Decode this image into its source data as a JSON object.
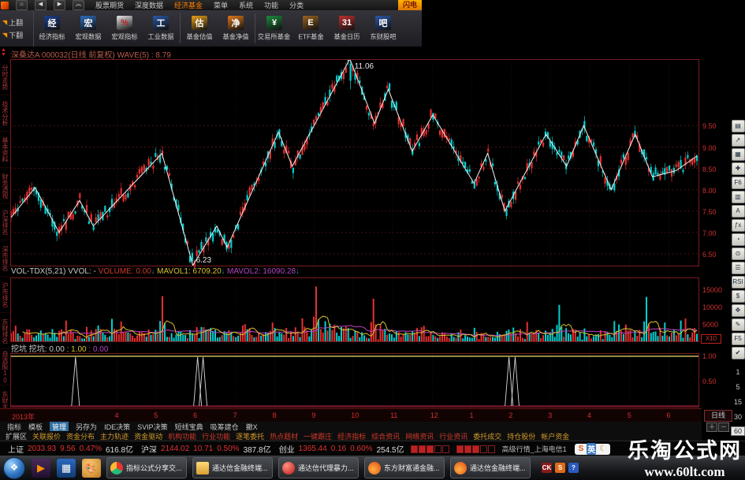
{
  "menu_bar": {
    "nav_buttons": [
      "⌂",
      "◀",
      "▶",
      "︽"
    ],
    "items": [
      {
        "label": "股票期货",
        "hot": false
      },
      {
        "label": "深度数据",
        "hot": false
      },
      {
        "label": "经济基金",
        "hot": true
      },
      {
        "label": "菜单",
        "hot": false
      },
      {
        "label": "系统",
        "hot": false
      },
      {
        "label": "功能",
        "hot": false
      },
      {
        "label": "分类",
        "hot": false
      }
    ],
    "flash_badge": "闪电"
  },
  "toolbar": {
    "page_buttons": [
      "上翻",
      "下翻"
    ],
    "buttons": [
      {
        "label": "经济指标",
        "glyph": "经",
        "color": "#1a3e8e"
      },
      {
        "label": "宏观数据",
        "glyph": "宏",
        "color": "#2d6fbe"
      },
      {
        "label": "宏观指标",
        "glyph": "%",
        "color": "#e8e8e8",
        "fg": "#c02020"
      },
      {
        "label": "工业数据",
        "glyph": "工",
        "color": "#2a58a8"
      },
      {
        "label": "基金估值",
        "glyph": "估",
        "color": "#e8a018"
      },
      {
        "label": "基金净值",
        "glyph": "净",
        "color": "#e07818"
      },
      {
        "label": "交易所基金",
        "glyph": "¥",
        "color": "#1e8a3c"
      },
      {
        "label": "ETF基金",
        "glyph": "E",
        "color": "#9a6420"
      },
      {
        "label": "基金日历",
        "glyph": "31",
        "color": "#c03030"
      },
      {
        "label": "东财股吧",
        "glyph": "吧",
        "color": "#2a58a8"
      }
    ],
    "separators_after": [
      3,
      5
    ]
  },
  "chart_header": {
    "title": "深桑达A 000032(日线 前复权) WAVE(5) : 8.79"
  },
  "left_tabs": [
    "分时走势",
    "技术分析",
    "基本资料",
    "财务透视",
    "沪深排名",
    "深市排名",
    "沪市排名",
    "东财排名",
    "自选股10",
    "东财主页"
  ],
  "vol_header": {
    "name": "VOL-TDX(5,21)",
    "vvol": "VVOL: -",
    "volume": "VOLUME: 0.00",
    "mavol1": "MAVOL1: 6709.20",
    "mavol2": "MAVOL2: 16090.28",
    "arrow": "↓"
  },
  "pit_header": {
    "name": "挖坑",
    "a": "挖坑: 0.00",
    "b": ": 1.00",
    "c": ": 0.00"
  },
  "date_axis": {
    "year": "2013年",
    "months": [
      {
        "label": "4",
        "f": 0.155
      },
      {
        "label": "5",
        "f": 0.212
      },
      {
        "label": "6",
        "f": 0.269
      },
      {
        "label": "7",
        "f": 0.327
      },
      {
        "label": "8",
        "f": 0.384
      },
      {
        "label": "9",
        "f": 0.441
      },
      {
        "label": "10",
        "f": 0.498
      },
      {
        "label": "11",
        "f": 0.555
      },
      {
        "label": "12",
        "f": 0.613
      },
      {
        "label": "1",
        "f": 0.67
      },
      {
        "label": "2",
        "f": 0.727
      },
      {
        "label": "3",
        "f": 0.784
      },
      {
        "label": "4",
        "f": 0.841
      },
      {
        "label": "5",
        "f": 0.899
      },
      {
        "label": "6",
        "f": 0.956
      }
    ],
    "period_label": "日线",
    "zoom_buttons": [
      "＋",
      "－"
    ]
  },
  "chart_data": {
    "type": "candlestick+volume+indicator",
    "symbol": "000032",
    "name": "深桑达A",
    "period": "日线",
    "adjust": "前复权",
    "wave_value": 8.79,
    "price_axis": [
      "9.50",
      "9.00",
      "8.50",
      "8.00",
      "7.50",
      "7.00",
      "6.50"
    ],
    "price_range": [
      6.1,
      11.2
    ],
    "high_label": {
      "f": 0.494,
      "price": "11.06"
    },
    "low_label": {
      "f": 0.265,
      "price": "6.23"
    },
    "candle_count": 300,
    "wave_points": [
      {
        "f": 0.0,
        "p": 7.35
      },
      {
        "f": 0.035,
        "p": 8.05
      },
      {
        "f": 0.07,
        "p": 7.0
      },
      {
        "f": 0.1,
        "p": 7.75
      },
      {
        "f": 0.12,
        "p": 7.15
      },
      {
        "f": 0.22,
        "p": 8.85
      },
      {
        "f": 0.265,
        "p": 6.23
      },
      {
        "f": 0.3,
        "p": 7.15
      },
      {
        "f": 0.315,
        "p": 6.65
      },
      {
        "f": 0.39,
        "p": 9.35
      },
      {
        "f": 0.41,
        "p": 8.55
      },
      {
        "f": 0.494,
        "p": 11.06
      },
      {
        "f": 0.53,
        "p": 9.55
      },
      {
        "f": 0.55,
        "p": 10.35
      },
      {
        "f": 0.585,
        "p": 8.9
      },
      {
        "f": 0.615,
        "p": 9.75
      },
      {
        "f": 0.675,
        "p": 8.15
      },
      {
        "f": 0.695,
        "p": 8.85
      },
      {
        "f": 0.72,
        "p": 7.5
      },
      {
        "f": 0.78,
        "p": 9.3
      },
      {
        "f": 0.81,
        "p": 8.55
      },
      {
        "f": 0.835,
        "p": 9.5
      },
      {
        "f": 0.875,
        "p": 8.0
      },
      {
        "f": 0.91,
        "p": 9.3
      },
      {
        "f": 0.935,
        "p": 8.3
      },
      {
        "f": 0.97,
        "p": 8.45
      },
      {
        "f": 1.0,
        "p": 8.79
      }
    ],
    "volume_axis": [
      "15000",
      "10000",
      "5000"
    ],
    "volume_unit": "X10",
    "volume_spikes": [
      {
        "f": 0.22,
        "v": 13000
      },
      {
        "f": 0.445,
        "v": 15800
      },
      {
        "f": 0.53,
        "v": 12300
      },
      {
        "f": 0.8,
        "v": 10500
      },
      {
        "f": 0.925,
        "v": 12800
      }
    ],
    "pit_indicator": {
      "level_top": "1.00",
      "level_mid": "0.50",
      "spike_fracs": [
        0.094,
        0.272,
        0.28,
        0.726,
        0.735
      ]
    },
    "colors": {
      "up": "#e83030",
      "down": "#00d0d0",
      "wave": "#f0f0f0",
      "mavol1": "#d8c030",
      "mavol2": "#c040c0",
      "grid": "#4a1010",
      "frame": "#7a1c1c",
      "axis_text": "#d03030",
      "pit_line": "#c8b860",
      "spike": "#d8d8d8"
    }
  },
  "right_rail": {
    "tools": [
      "▤",
      "↗",
      "▦",
      "✚",
      "F6",
      "▥",
      "A",
      "ƒx",
      "◔",
      "⊙",
      "☰",
      "RSI",
      "$",
      "✥",
      "✎",
      "F5",
      "✔"
    ],
    "periods": [
      "1",
      "5",
      "15",
      "30",
      "60"
    ]
  },
  "bottom_rows": {
    "row1": [
      {
        "label": "指标",
        "sel": false
      },
      {
        "label": "模板",
        "sel": false
      },
      {
        "label": "管理",
        "sel": true
      },
      {
        "label": "另存为",
        "sel": false
      },
      {
        "label": "IDE决策",
        "sel": false
      },
      {
        "label": "SVIP决策",
        "sel": false
      },
      {
        "label": "短线宝典",
        "sel": false
      },
      {
        "label": "吸筹建仓",
        "sel": false
      },
      {
        "label": "撤X",
        "sel": false
      }
    ],
    "row2": [
      {
        "label": "扩展区",
        "c": "#c8c8c8"
      },
      {
        "label": "关联报价",
        "c": "#d19a2c"
      },
      {
        "label": "资金分布",
        "c": "#d19a2c"
      },
      {
        "label": "主力轨迹",
        "c": "#d19a2c"
      },
      {
        "label": "资金驱动",
        "c": "#d19a2c"
      },
      {
        "label": "机构功能",
        "c": "#d03a2a"
      },
      {
        "label": "行业功能",
        "c": "#d03a2a"
      },
      {
        "label": "逐笔委托",
        "c": "#d19a2c"
      },
      {
        "label": "热点题材",
        "c": "#d03a2a"
      },
      {
        "label": "一键跟庄",
        "c": "#d03a2a"
      },
      {
        "label": "经济指标",
        "c": "#d03a2a"
      },
      {
        "label": "综合资讯",
        "c": "#d03a2a"
      },
      {
        "label": "网络资讯",
        "c": "#d03a2a"
      },
      {
        "label": "行业资讯",
        "c": "#d03a2a"
      },
      {
        "label": "委托成交",
        "c": "#d19a2c"
      },
      {
        "label": "持仓股份",
        "c": "#d19a2c"
      },
      {
        "label": "帐户资金",
        "c": "#d19a2c"
      }
    ]
  },
  "status_bar": {
    "indices": [
      {
        "name": "上证",
        "value": "2033.93",
        "change": "9.56",
        "pct": "0.47%",
        "amount": "616.8亿"
      },
      {
        "name": "沪深",
        "value": "2144.02",
        "change": "10.71",
        "pct": "0.50%",
        "amount": "387.8亿"
      },
      {
        "name": "创业",
        "value": "1365.44",
        "change": "0.16",
        "pct": "0.60%",
        "amount": "254.5亿"
      }
    ],
    "server": "高级行情_上海电信1",
    "ime": {
      "s": "S",
      "lang": "英",
      "moon": "☾"
    }
  },
  "taskbar": {
    "windows": [
      {
        "label": "指标公式分享交...",
        "icon": "chrome"
      },
      {
        "label": "通达信金融终端...",
        "icon": "folder"
      },
      {
        "label": "通达信代理暴力...",
        "icon": "redorb"
      },
      {
        "label": "东方财富通金融...",
        "icon": "flame"
      },
      {
        "label": "通达信金融终端...",
        "icon": "flame"
      }
    ],
    "tray": [
      {
        "label": "CK",
        "bg": "#8a1a1a"
      },
      {
        "label": "S",
        "bg": "#e06a18"
      },
      {
        "label": "?",
        "bg": "#2a5ac0"
      }
    ]
  },
  "watermark": {
    "line1": "乐淘公式网",
    "line2": "www.60lt.com"
  }
}
